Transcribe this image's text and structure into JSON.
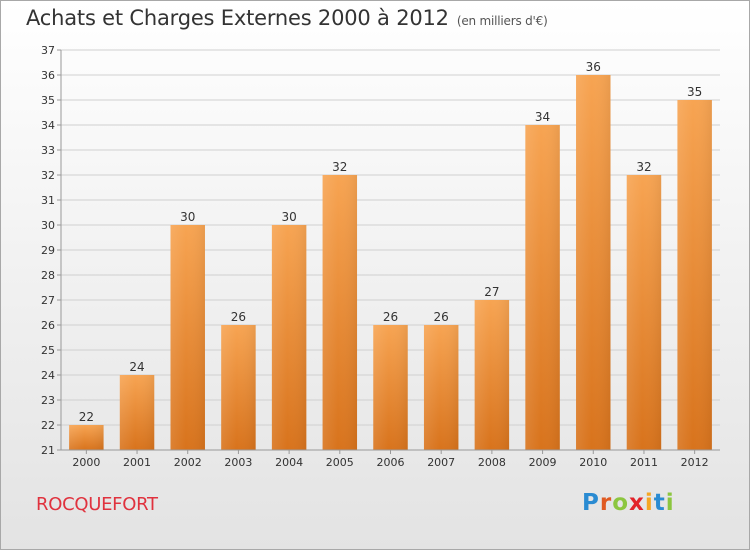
{
  "header": {
    "title": "Achats et Charges Externes 2000 à 2012",
    "unit": "(en milliers d'€)"
  },
  "location_label": "ROCQUEFORT",
  "logo": {
    "text": "Proxiti",
    "letter_colors": [
      "#2a8bd2",
      "#e05a21",
      "#8cc63f",
      "#e2232a",
      "#f5a623",
      "#2a8bd2",
      "#8cc63f"
    ]
  },
  "colors": {
    "bar_top": "#f7a452",
    "bar_bottom": "#d8731c",
    "grid": "#d0d0d0",
    "axis": "#999999",
    "text": "#333333"
  },
  "chart_data": {
    "type": "bar",
    "title": "Achats et Charges Externes 2000 à 2012",
    "subtitle": "(en milliers d'€)",
    "xlabel": "",
    "ylabel": "",
    "categories": [
      "2000",
      "2001",
      "2002",
      "2003",
      "2004",
      "2005",
      "2006",
      "2007",
      "2008",
      "2009",
      "2010",
      "2011",
      "2012"
    ],
    "values": [
      22,
      24,
      30,
      26,
      30,
      32,
      26,
      26,
      27,
      34,
      36,
      32,
      35
    ],
    "ylim": [
      21,
      37
    ],
    "yticks": [
      21,
      22,
      23,
      24,
      25,
      26,
      27,
      28,
      29,
      30,
      31,
      32,
      33,
      34,
      35,
      36,
      37
    ],
    "grid": true,
    "data_labels": true
  }
}
